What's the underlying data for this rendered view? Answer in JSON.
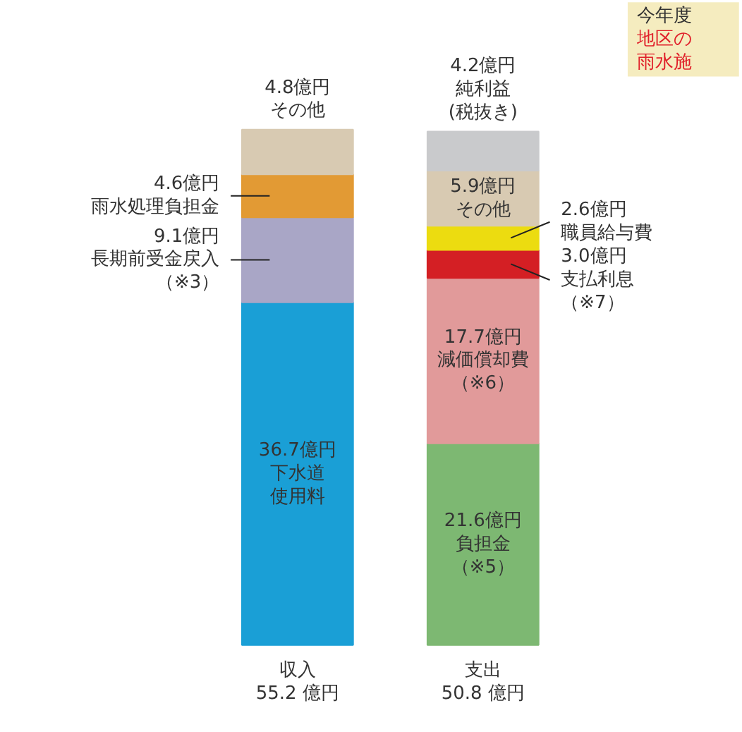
{
  "chart_data": {
    "type": "bar",
    "stacked": true,
    "categories": [
      "収入",
      "支出"
    ],
    "annotations": [
      "55.2 億円",
      "50.8 億円",
      "今年度地区の雨水施"
    ],
    "series": [
      {
        "name": "下水道使用料",
        "color": "#1a9fd6",
        "values": [
          36.7,
          null
        ],
        "value_labels": [
          "36.7億円",
          null
        ]
      },
      {
        "name": "長期前受金戻入（※3）",
        "color": "#a9a6c6",
        "values": [
          9.1,
          null
        ],
        "value_labels": [
          "9.1億円",
          null
        ]
      },
      {
        "name": "雨水処理負担金",
        "color": "#e29a34",
        "values": [
          4.6,
          null
        ],
        "value_labels": [
          "4.6億円",
          null
        ]
      },
      {
        "name": "その他",
        "color": "#d8cab2",
        "values": [
          4.8,
          null
        ],
        "value_labels": [
          "4.8億円",
          null
        ]
      },
      {
        "name": "負担金（※5）",
        "color": "#7db872",
        "values": [
          null,
          21.6
        ],
        "value_labels": [
          null,
          "21.6億円"
        ]
      },
      {
        "name": "減価償却費（※6）",
        "color": "#e19a9a",
        "values": [
          null,
          17.7
        ],
        "value_labels": [
          null,
          "17.7億円"
        ]
      },
      {
        "name": "支払利息（※7）",
        "color": "#d41f24",
        "values": [
          null,
          3.0
        ],
        "value_labels": [
          null,
          "3.0億円"
        ]
      },
      {
        "name": "職員給与費",
        "color": "#ecdc10",
        "values": [
          null,
          2.6
        ],
        "value_labels": [
          null,
          "2.6億円"
        ]
      },
      {
        "name": "その他",
        "color": "#d8cab2",
        "values": [
          null,
          5.9
        ],
        "value_labels": [
          null,
          "5.9億円"
        ]
      },
      {
        "name": "純利益(税抜き)",
        "color": "#c9cacc",
        "values": [
          null,
          4.2
        ],
        "value_labels": [
          null,
          "4.2億円"
        ]
      }
    ]
  }
}
